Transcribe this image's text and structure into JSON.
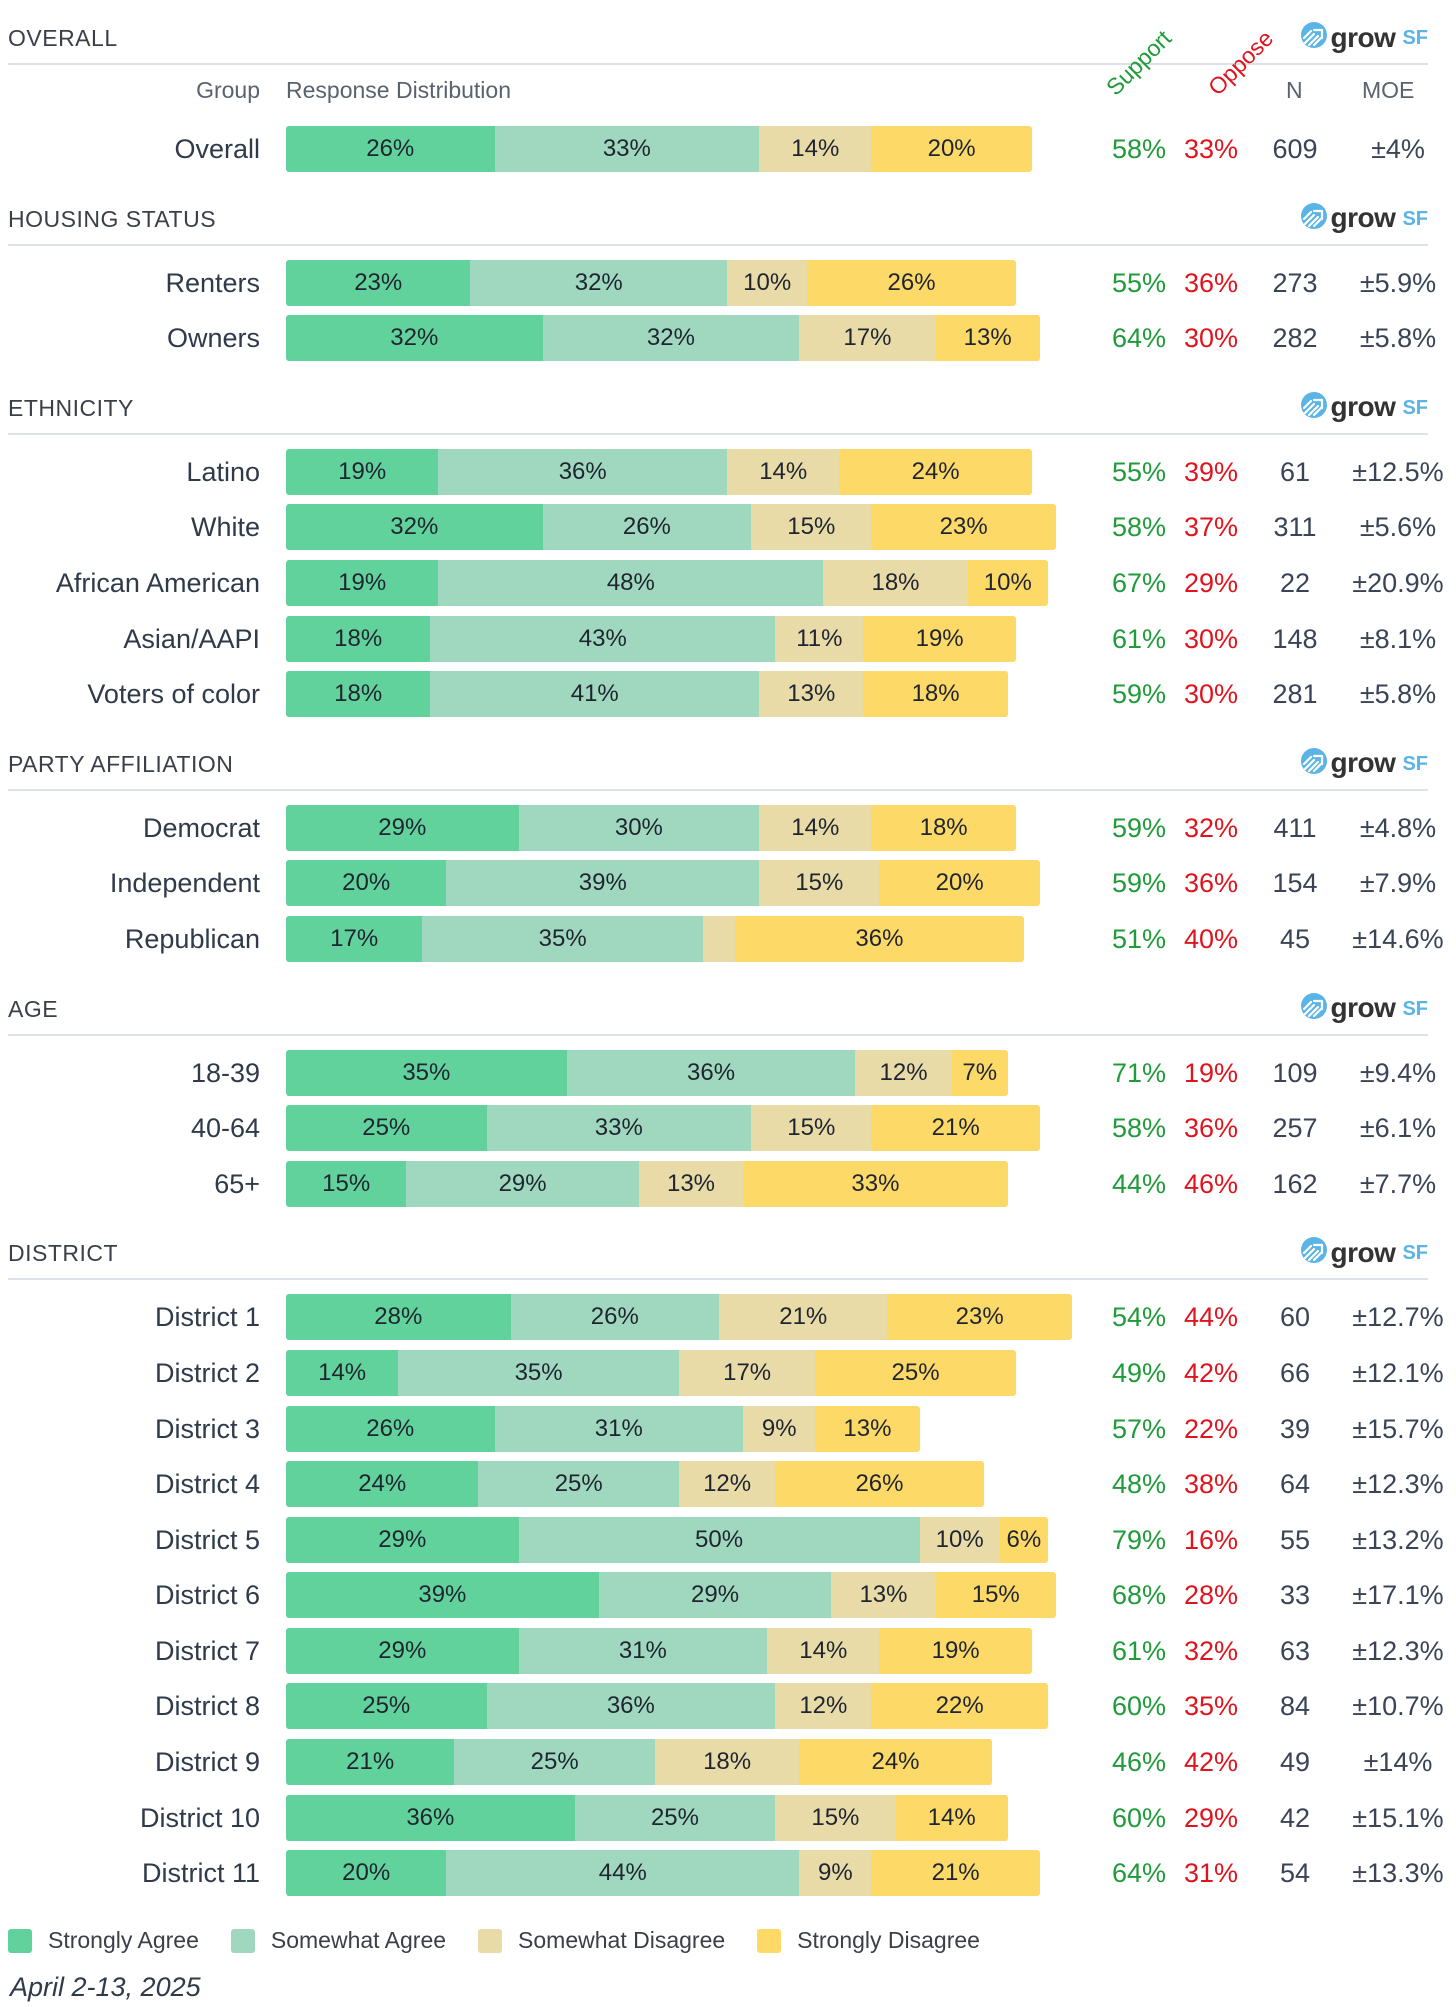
{
  "colors": {
    "strongly_agree": "#62d29c",
    "somewhat_agree": "#a0d8bf",
    "somewhat_disagree": "#e8dba8",
    "strongly_disagree": "#fdd968",
    "support": "#1f9b3a",
    "oppose": "#e0141e",
    "logo_accent": "#5ab4e5"
  },
  "logo": {
    "word": "grow",
    "suffix": "SF",
    "icon": "growsf-logo-icon"
  },
  "columns": {
    "group": "Group",
    "distribution": "Response Distribution",
    "support": "Support",
    "oppose": "Oppose",
    "n": "N",
    "moe": "MOE"
  },
  "chart_data": {
    "type": "bar",
    "orientation": "horizontal-stacked",
    "unit": "%",
    "series_names": [
      "Strongly Agree",
      "Somewhat Agree",
      "Somewhat Disagree",
      "Strongly Disagree"
    ],
    "xlim": [
      0,
      100
    ],
    "sections": [
      {
        "title": "OVERALL",
        "rows": [
          {
            "label": "Overall",
            "values": [
              26,
              33,
              14,
              20
            ],
            "support": "58%",
            "oppose": "33%",
            "n": "609",
            "moe": "±4%"
          }
        ]
      },
      {
        "title": "HOUSING STATUS",
        "rows": [
          {
            "label": "Renters",
            "values": [
              23,
              32,
              10,
              26
            ],
            "support": "55%",
            "oppose": "36%",
            "n": "273",
            "moe": "±5.9%"
          },
          {
            "label": "Owners",
            "values": [
              32,
              32,
              17,
              13
            ],
            "support": "64%",
            "oppose": "30%",
            "n": "282",
            "moe": "±5.8%"
          }
        ]
      },
      {
        "title": "ETHNICITY",
        "rows": [
          {
            "label": "Latino",
            "values": [
              19,
              36,
              14,
              24
            ],
            "support": "55%",
            "oppose": "39%",
            "n": "61",
            "moe": "±12.5%"
          },
          {
            "label": "White",
            "values": [
              32,
              26,
              15,
              23
            ],
            "support": "58%",
            "oppose": "37%",
            "n": "311",
            "moe": "±5.6%"
          },
          {
            "label": "African American",
            "values": [
              19,
              48,
              18,
              10
            ],
            "support": "67%",
            "oppose": "29%",
            "n": "22",
            "moe": "±20.9%"
          },
          {
            "label": "Asian/AAPI",
            "values": [
              18,
              43,
              11,
              19
            ],
            "support": "61%",
            "oppose": "30%",
            "n": "148",
            "moe": "±8.1%"
          },
          {
            "label": "Voters of color",
            "values": [
              18,
              41,
              13,
              18
            ],
            "support": "59%",
            "oppose": "30%",
            "n": "281",
            "moe": "±5.8%"
          }
        ]
      },
      {
        "title": "PARTY AFFILIATION",
        "rows": [
          {
            "label": "Democrat",
            "values": [
              29,
              30,
              14,
              18
            ],
            "support": "59%",
            "oppose": "32%",
            "n": "411",
            "moe": "±4.8%"
          },
          {
            "label": "Independent",
            "values": [
              20,
              39,
              15,
              20
            ],
            "support": "59%",
            "oppose": "36%",
            "n": "154",
            "moe": "±7.9%"
          },
          {
            "label": "Republican",
            "values": [
              17,
              35,
              4,
              36
            ],
            "support": "51%",
            "oppose": "40%",
            "n": "45",
            "moe": "±14.6%"
          }
        ]
      },
      {
        "title": "AGE",
        "rows": [
          {
            "label": "18-39",
            "values": [
              35,
              36,
              12,
              7
            ],
            "support": "71%",
            "oppose": "19%",
            "n": "109",
            "moe": "±9.4%"
          },
          {
            "label": "40-64",
            "values": [
              25,
              33,
              15,
              21
            ],
            "support": "58%",
            "oppose": "36%",
            "n": "257",
            "moe": "±6.1%"
          },
          {
            "label": "65+",
            "values": [
              15,
              29,
              13,
              33
            ],
            "support": "44%",
            "oppose": "46%",
            "n": "162",
            "moe": "±7.7%"
          }
        ]
      },
      {
        "title": "DISTRICT",
        "rows": [
          {
            "label": "District 1",
            "values": [
              28,
              26,
              21,
              23
            ],
            "support": "54%",
            "oppose": "44%",
            "n": "60",
            "moe": "±12.7%"
          },
          {
            "label": "District 2",
            "values": [
              14,
              35,
              17,
              25
            ],
            "support": "49%",
            "oppose": "42%",
            "n": "66",
            "moe": "±12.1%"
          },
          {
            "label": "District 3",
            "values": [
              26,
              31,
              9,
              13
            ],
            "support": "57%",
            "oppose": "22%",
            "n": "39",
            "moe": "±15.7%"
          },
          {
            "label": "District 4",
            "values": [
              24,
              25,
              12,
              26
            ],
            "support": "48%",
            "oppose": "38%",
            "n": "64",
            "moe": "±12.3%"
          },
          {
            "label": "District 5",
            "values": [
              29,
              50,
              10,
              6
            ],
            "support": "79%",
            "oppose": "16%",
            "n": "55",
            "moe": "±13.2%"
          },
          {
            "label": "District 6",
            "values": [
              39,
              29,
              13,
              15
            ],
            "support": "68%",
            "oppose": "28%",
            "n": "33",
            "moe": "±17.1%"
          },
          {
            "label": "District 7",
            "values": [
              29,
              31,
              14,
              19
            ],
            "support": "61%",
            "oppose": "32%",
            "n": "63",
            "moe": "±12.3%"
          },
          {
            "label": "District 8",
            "values": [
              25,
              36,
              12,
              22
            ],
            "support": "60%",
            "oppose": "35%",
            "n": "84",
            "moe": "±10.7%"
          },
          {
            "label": "District 9",
            "values": [
              21,
              25,
              18,
              24
            ],
            "support": "46%",
            "oppose": "42%",
            "n": "49",
            "moe": "±14%"
          },
          {
            "label": "District 10",
            "values": [
              36,
              25,
              15,
              14
            ],
            "support": "60%",
            "oppose": "29%",
            "n": "42",
            "moe": "±15.1%"
          },
          {
            "label": "District 11",
            "values": [
              20,
              44,
              9,
              21
            ],
            "support": "64%",
            "oppose": "31%",
            "n": "54",
            "moe": "±13.3%"
          }
        ]
      }
    ],
    "legend": [
      "Strongly Agree",
      "Somewhat Agree",
      "Somewhat Disagree",
      "Strongly Disagree"
    ],
    "legend_position": "bottom"
  },
  "footer": {
    "date": "April 2-13, 2025"
  }
}
